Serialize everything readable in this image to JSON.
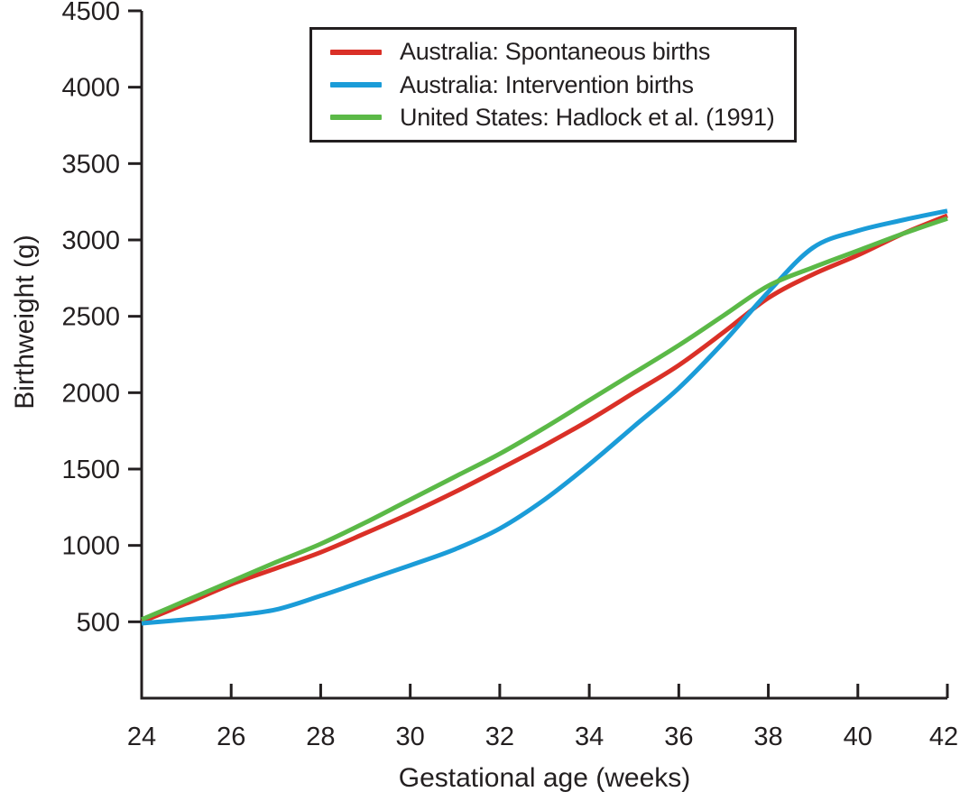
{
  "chart_data": {
    "type": "line",
    "title": "",
    "xlabel": "Gestational age (weeks)",
    "ylabel": "Birthweight (g)",
    "x": [
      24,
      25,
      26,
      27,
      28,
      29,
      30,
      31,
      32,
      33,
      34,
      35,
      36,
      37,
      38,
      39,
      40,
      41,
      42
    ],
    "xlim": [
      24,
      42
    ],
    "ylim": [
      0,
      4500
    ],
    "xticks": [
      24,
      26,
      28,
      30,
      32,
      34,
      36,
      38,
      40,
      42
    ],
    "yticks": [
      500,
      1000,
      1500,
      2000,
      2500,
      3000,
      3500,
      4000,
      4500
    ],
    "grid": false,
    "legend_position": "top-center-boxed",
    "axis_color": "#231f20",
    "series": [
      {
        "name": "Australia: Spontaneous births",
        "color": "#da3027",
        "values": [
          500,
          620,
          745,
          850,
          955,
          1080,
          1210,
          1350,
          1500,
          1655,
          1820,
          2000,
          2180,
          2395,
          2620,
          2775,
          2900,
          3040,
          3160
        ]
      },
      {
        "name": "Australia: Intervention births",
        "color": "#1b9cd8",
        "values": [
          490,
          515,
          540,
          580,
          670,
          770,
          870,
          975,
          1110,
          1300,
          1530,
          1780,
          2030,
          2330,
          2660,
          2950,
          3060,
          3130,
          3190
        ]
      },
      {
        "name": "United States: Hadlock et al. (1991)",
        "color": "#5bb947",
        "values": [
          515,
          640,
          765,
          890,
          1010,
          1150,
          1300,
          1450,
          1600,
          1770,
          1950,
          2130,
          2310,
          2505,
          2700,
          2820,
          2930,
          3040,
          3140
        ]
      }
    ]
  }
}
